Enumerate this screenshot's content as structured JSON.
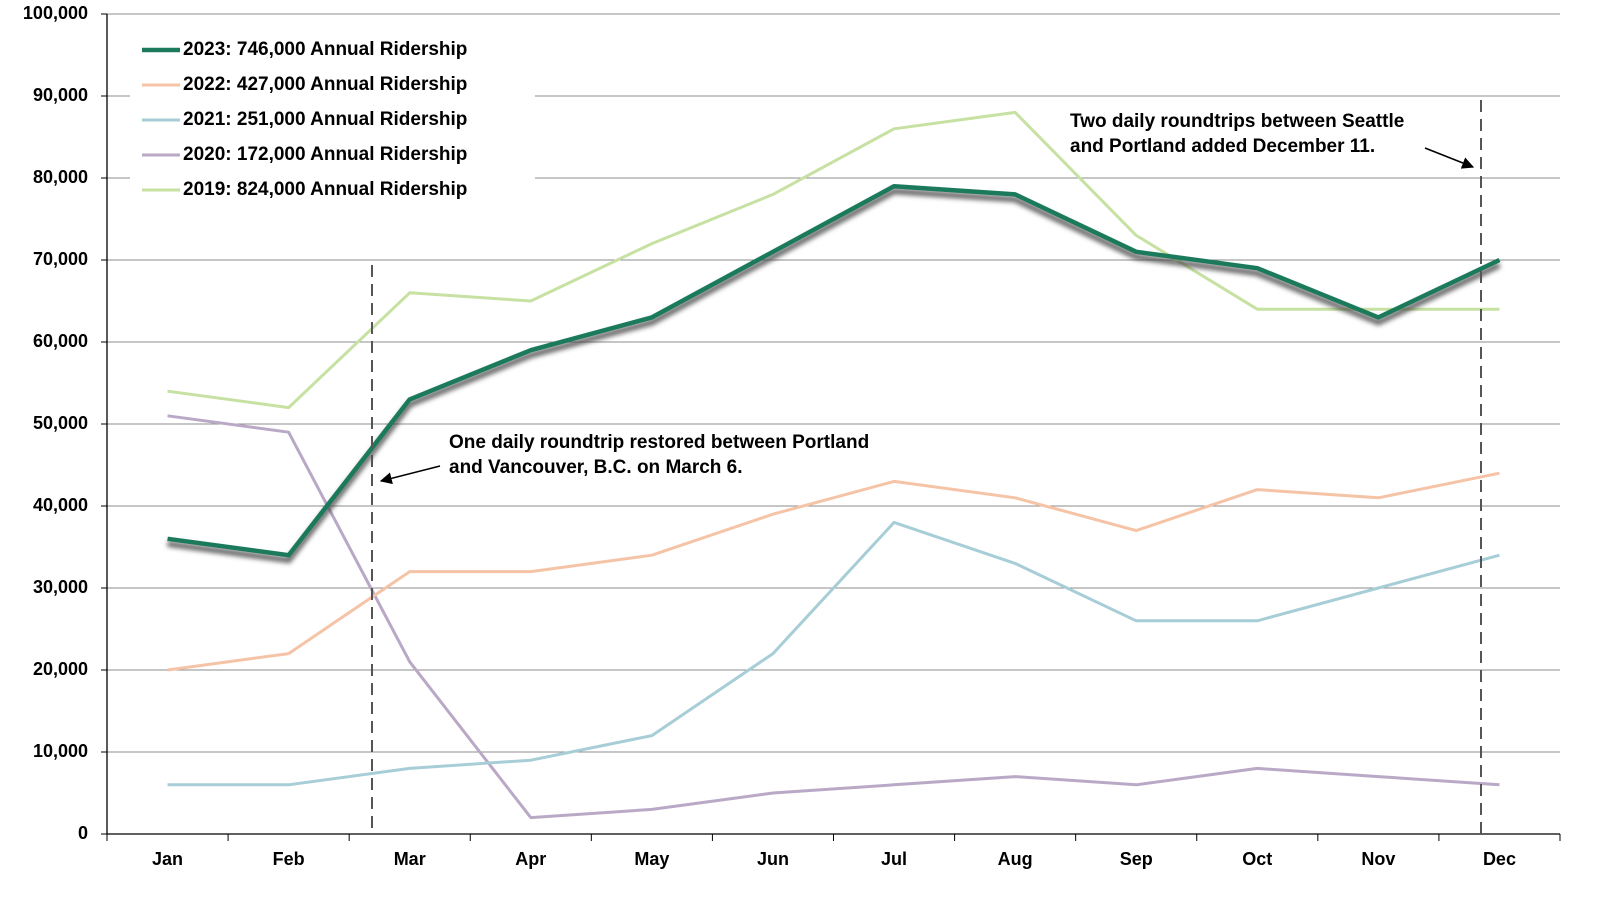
{
  "chart_data": {
    "type": "line",
    "categories": [
      "Jan",
      "Feb",
      "Mar",
      "Apr",
      "May",
      "Jun",
      "Jul",
      "Aug",
      "Sep",
      "Oct",
      "Nov",
      "Dec"
    ],
    "series": [
      {
        "name": "2023: 746,000 Annual Ridership",
        "color": "#1b7a5c",
        "values": [
          36000,
          34000,
          53000,
          59000,
          63000,
          71000,
          79000,
          78000,
          71000,
          69000,
          63000,
          70000
        ]
      },
      {
        "name": "2022: 427,000 Annual Ridership",
        "color": "#f5c3a6",
        "values": [
          20000,
          22000,
          32000,
          32000,
          34000,
          39000,
          43000,
          41000,
          37000,
          42000,
          41000,
          44000
        ]
      },
      {
        "name": "2021: 251,000 Annual Ridership",
        "color": "#a7cdd7",
        "values": [
          6000,
          6000,
          8000,
          9000,
          12000,
          22000,
          38000,
          33000,
          26000,
          26000,
          30000,
          34000
        ]
      },
      {
        "name": "2020: 172,000 Annual Ridership",
        "color": "#b9a8c6",
        "values": [
          51000,
          49000,
          21000,
          2000,
          3000,
          5000,
          6000,
          7000,
          6000,
          8000,
          7000,
          6000
        ]
      },
      {
        "name": "2019: 824,000 Annual Ridership",
        "color": "#c6e1a2",
        "values": [
          54000,
          52000,
          66000,
          65000,
          72000,
          78000,
          86000,
          88000,
          73000,
          64000,
          64000,
          64000
        ]
      }
    ],
    "ylim": [
      0,
      100000
    ],
    "yticks": [
      0,
      {
        "value": 10000,
        "label": "10,000"
      },
      {
        "value": 20000,
        "label": "20,000"
      },
      {
        "value": 30000,
        "label": "30,000"
      },
      {
        "value": 40000,
        "label": "40,000"
      },
      {
        "value": 50000,
        "label": "50,000"
      },
      {
        "value": 60000,
        "label": "60,000"
      },
      {
        "value": 70000,
        "label": "70,000"
      },
      {
        "value": 80000,
        "label": "80,000"
      },
      {
        "value": 90000,
        "label": "90,000"
      },
      {
        "value": 100000,
        "label": "100,000"
      }
    ],
    "grid": true,
    "annotations": [
      [
        "One daily roundtrip restored between Portland",
        "and Vancouver, B.C. on March 6."
      ],
      [
        "Two daily roundtrips between Seattle",
        "and Portland added December 11."
      ]
    ]
  }
}
